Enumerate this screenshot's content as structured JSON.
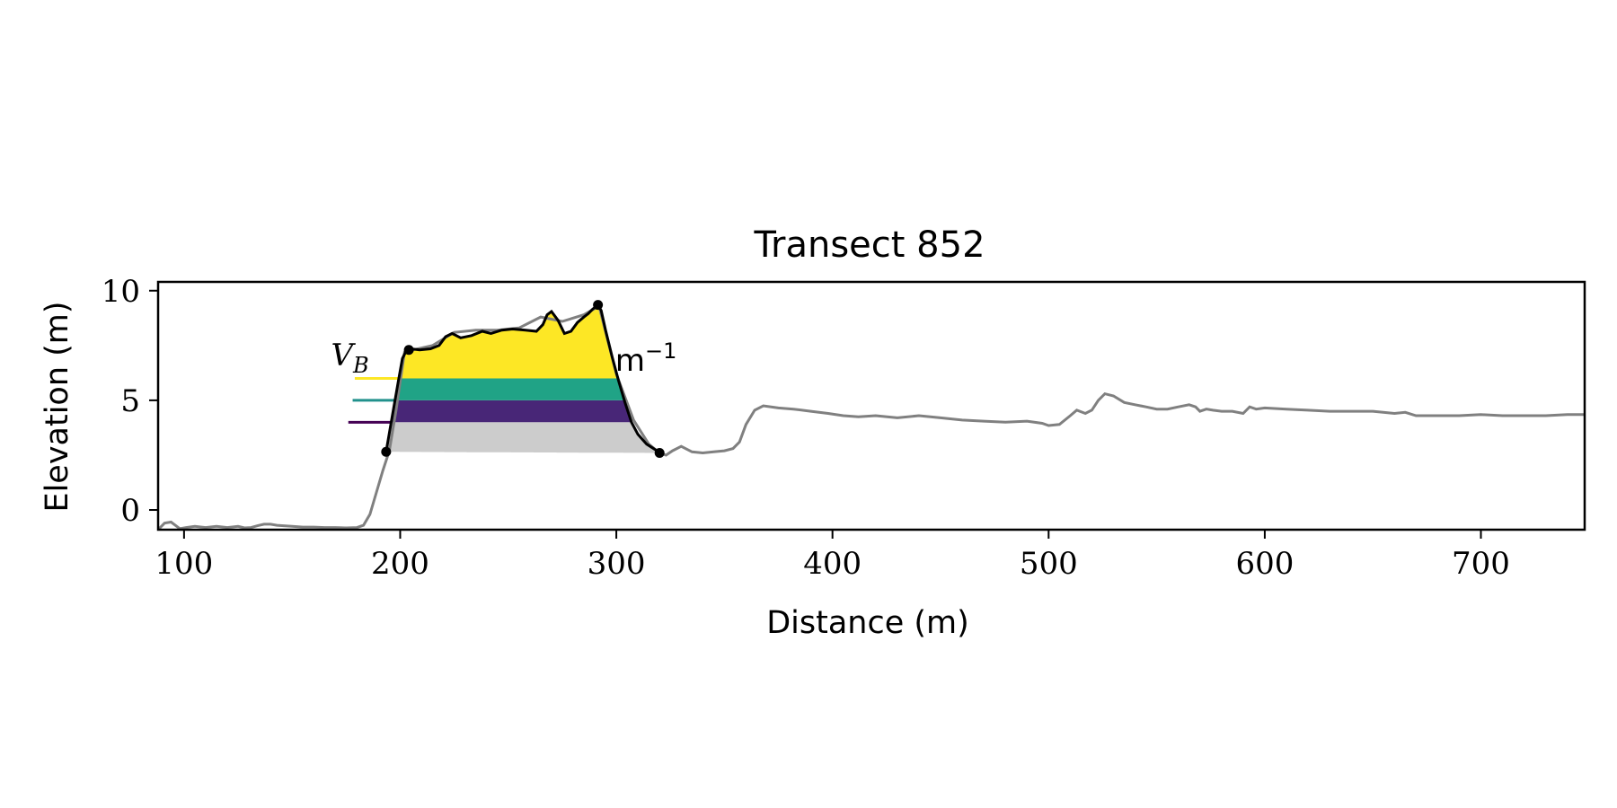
{
  "chart_data": {
    "type": "line",
    "title": "Transect 852",
    "xlabel": "Distance (m)",
    "ylabel": "Elevation (m)",
    "xlim": [
      88,
      748
    ],
    "ylim": [
      -0.9,
      10.4
    ],
    "xticks": [
      100,
      200,
      300,
      400,
      500,
      600,
      700
    ],
    "yticks": [
      0,
      5,
      10
    ],
    "grid": false,
    "colors": {
      "profile": "#808080",
      "dune": "#000000",
      "base_fill": "#cccccc",
      "level_1": "#440154",
      "level_2": "#21918c",
      "level_3": "#fde725",
      "band_1": "#482677",
      "band_2": "#20a386",
      "band_3": "#fde725"
    },
    "profile": {
      "x": [
        88,
        91,
        94,
        98,
        101,
        105,
        110,
        115,
        120,
        125,
        128,
        131,
        134,
        137,
        140,
        143,
        146,
        150,
        155,
        160,
        165,
        170,
        175,
        180,
        183,
        186,
        189,
        192,
        195,
        198,
        202,
        206,
        215,
        225,
        235,
        245,
        255,
        265,
        275,
        285,
        292,
        300,
        308,
        315,
        320,
        323,
        326,
        330,
        335,
        340,
        345,
        350,
        354,
        357,
        360,
        364,
        368,
        375,
        382,
        390,
        398,
        405,
        412,
        420,
        430,
        440,
        450,
        460,
        470,
        480,
        490,
        497,
        500,
        505,
        510,
        513,
        517,
        520,
        523,
        526,
        530,
        535,
        540,
        545,
        550,
        555,
        560,
        565,
        568,
        570,
        573,
        576,
        580,
        585,
        590,
        593,
        596,
        600,
        610,
        620,
        630,
        640,
        650,
        660,
        665,
        670,
        680,
        690,
        700,
        710,
        720,
        730,
        740,
        748
      ],
      "y": [
        -0.9,
        -0.6,
        -0.55,
        -0.85,
        -0.8,
        -0.75,
        -0.8,
        -0.75,
        -0.8,
        -0.75,
        -0.82,
        -0.8,
        -0.72,
        -0.65,
        -0.65,
        -0.7,
        -0.72,
        -0.75,
        -0.78,
        -0.78,
        -0.8,
        -0.8,
        -0.82,
        -0.8,
        -0.7,
        -0.2,
        0.8,
        1.8,
        2.7,
        4.5,
        7.2,
        7.3,
        7.5,
        8.1,
        8.2,
        8.2,
        8.3,
        8.8,
        8.6,
        8.9,
        9.3,
        6.2,
        4.1,
        3.0,
        2.6,
        2.5,
        2.7,
        2.9,
        2.65,
        2.6,
        2.65,
        2.7,
        2.8,
        3.1,
        3.9,
        4.55,
        4.75,
        4.65,
        4.6,
        4.5,
        4.4,
        4.3,
        4.25,
        4.3,
        4.2,
        4.3,
        4.2,
        4.1,
        4.05,
        4.0,
        4.05,
        3.95,
        3.85,
        3.9,
        4.3,
        4.55,
        4.4,
        4.55,
        5.0,
        5.3,
        5.2,
        4.9,
        4.8,
        4.7,
        4.6,
        4.6,
        4.7,
        4.8,
        4.7,
        4.5,
        4.6,
        4.55,
        4.5,
        4.5,
        4.4,
        4.7,
        4.6,
        4.65,
        4.6,
        4.55,
        4.5,
        4.5,
        4.5,
        4.4,
        4.45,
        4.3,
        4.3,
        4.3,
        4.35,
        4.3,
        4.3,
        4.3,
        4.35,
        4.35
      ]
    },
    "dune_outline": {
      "x": [
        193.5,
        196,
        199,
        201,
        203,
        205,
        209,
        214,
        218,
        221,
        224,
        228,
        233,
        238,
        242,
        247,
        252,
        258,
        263,
        266,
        268,
        270,
        273,
        276,
        279,
        282,
        285,
        287,
        289,
        291.5,
        293,
        295,
        298,
        301,
        304,
        307,
        310,
        314,
        318,
        320
      ],
      "y": [
        2.65,
        4.1,
        5.8,
        6.9,
        7.3,
        7.35,
        7.3,
        7.35,
        7.5,
        7.9,
        8.05,
        7.85,
        7.95,
        8.15,
        8.05,
        8.2,
        8.25,
        8.2,
        8.15,
        8.45,
        8.9,
        9.05,
        8.65,
        8.05,
        8.15,
        8.55,
        8.8,
        8.95,
        9.15,
        9.35,
        9.1,
        8.2,
        7.0,
        5.9,
        4.9,
        4.0,
        3.45,
        3.0,
        2.75,
        2.6
      ]
    },
    "key_points": [
      {
        "x": 193.5,
        "y": 2.65
      },
      {
        "x": 204,
        "y": 7.3
      },
      {
        "x": 291.5,
        "y": 9.35
      },
      {
        "x": 320,
        "y": 2.6
      }
    ],
    "levels": [
      {
        "y": 4.0,
        "x_start": 176
      },
      {
        "y": 5.0,
        "x_start": 178
      },
      {
        "y": 6.0,
        "x_start": 179
      }
    ],
    "annotation_left": "V",
    "annotation_left_sub": "B",
    "annotation_right": "m",
    "annotation_right_exp": "−1"
  }
}
